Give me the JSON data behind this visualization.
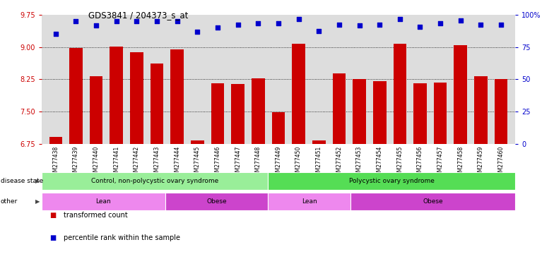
{
  "title": "GDS3841 / 204373_s_at",
  "samples": [
    "GSM277438",
    "GSM277439",
    "GSM277440",
    "GSM277441",
    "GSM277442",
    "GSM277443",
    "GSM277444",
    "GSM277445",
    "GSM277446",
    "GSM277447",
    "GSM277448",
    "GSM277449",
    "GSM277450",
    "GSM277451",
    "GSM277452",
    "GSM277453",
    "GSM277454",
    "GSM277455",
    "GSM277456",
    "GSM277457",
    "GSM277458",
    "GSM277459",
    "GSM277460"
  ],
  "bar_values": [
    6.9,
    8.98,
    8.32,
    9.02,
    8.88,
    8.62,
    8.94,
    6.82,
    8.15,
    8.14,
    8.27,
    7.48,
    9.07,
    6.82,
    8.38,
    8.25,
    8.2,
    9.08,
    8.15,
    8.18,
    9.05,
    8.32,
    8.25
  ],
  "dot_values": [
    9.3,
    9.6,
    9.5,
    9.6,
    9.6,
    9.6,
    9.6,
    9.35,
    9.45,
    9.52,
    9.55,
    9.56,
    9.65,
    9.38,
    9.52,
    9.5,
    9.52,
    9.65,
    9.48,
    9.55,
    9.62,
    9.52,
    9.52
  ],
  "ylim": [
    6.75,
    9.75
  ],
  "yticks_left": [
    6.75,
    7.5,
    8.25,
    9.0,
    9.75
  ],
  "yticks_right": [
    0,
    25,
    50,
    75,
    100
  ],
  "bar_color": "#cc0000",
  "dot_color": "#0000cc",
  "disease_state_groups": [
    {
      "label": "Control, non-polycystic ovary syndrome",
      "start": 0,
      "end": 11,
      "color": "#99ee99"
    },
    {
      "label": "Polycystic ovary syndrome",
      "start": 11,
      "end": 23,
      "color": "#55dd55"
    }
  ],
  "other_groups": [
    {
      "label": "Lean",
      "start": 0,
      "end": 6,
      "color": "#ee88ee"
    },
    {
      "label": "Obese",
      "start": 6,
      "end": 11,
      "color": "#cc44cc"
    },
    {
      "label": "Lean",
      "start": 11,
      "end": 15,
      "color": "#ee88ee"
    },
    {
      "label": "Obese",
      "start": 15,
      "end": 23,
      "color": "#cc44cc"
    }
  ],
  "legend_items": [
    {
      "label": "transformed count",
      "color": "#cc0000"
    },
    {
      "label": "percentile rank within the sample",
      "color": "#0000cc"
    }
  ],
  "bg_color": "#ffffff",
  "axis_bg_color": "#dddddd"
}
